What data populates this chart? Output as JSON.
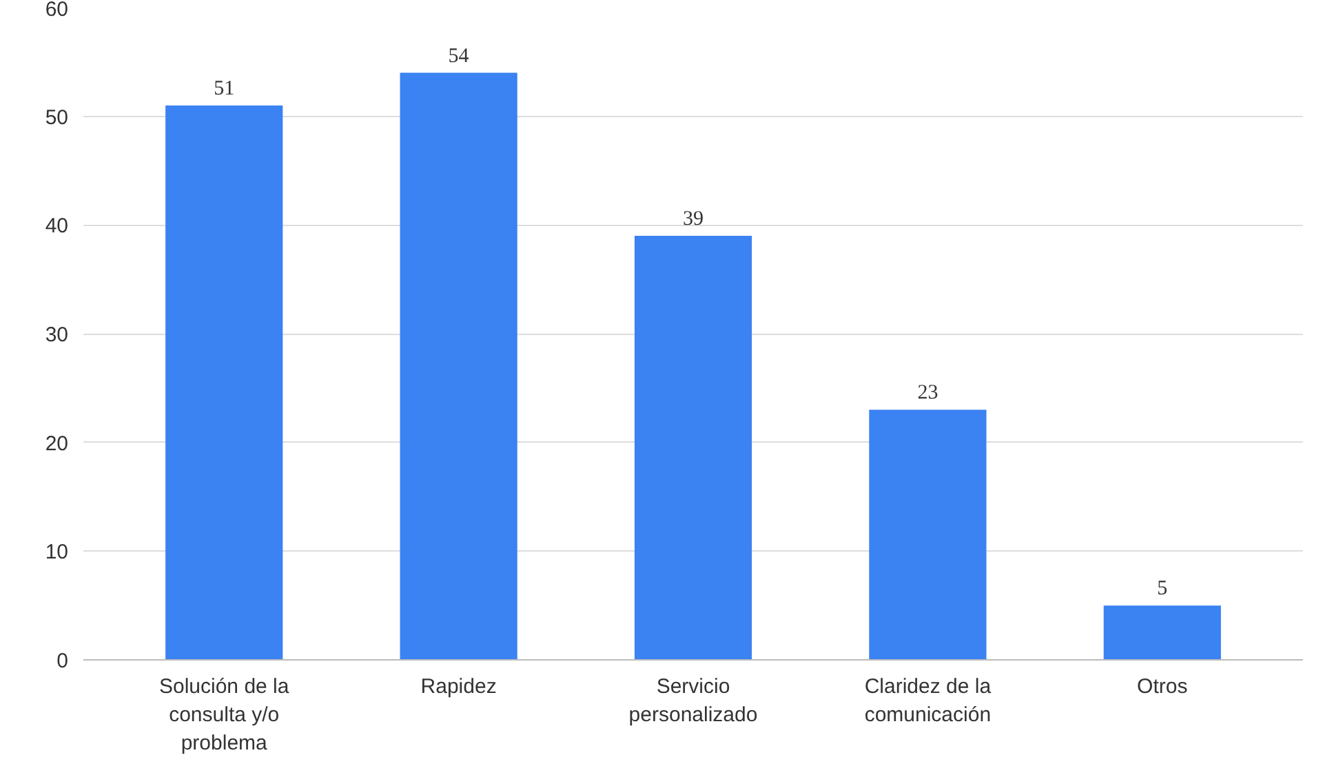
{
  "chart_data": {
    "type": "bar",
    "categories": [
      "Solución de la consulta y/o problema",
      "Rapidez",
      "Servicio personalizado",
      "Claridez de la comunicación",
      "Otros"
    ],
    "values": [
      51,
      54,
      39,
      23,
      5
    ],
    "color": "#3b82f2",
    "ylim": [
      0,
      60
    ],
    "yticks": [
      0,
      10,
      20,
      30,
      40,
      50,
      60
    ],
    "grid": "y",
    "data_labels": true
  }
}
